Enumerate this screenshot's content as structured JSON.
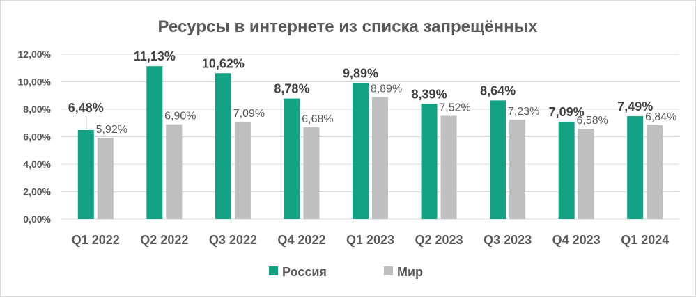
{
  "chart_data": {
    "type": "bar",
    "title": "Ресурсы в интернете из списка запрещённых",
    "xlabel": "",
    "ylabel": "",
    "categories": [
      "Q1 2022",
      "Q2 2022",
      "Q3 2022",
      "Q4 2022",
      "Q1 2023",
      "Q2 2023",
      "Q3 2023",
      "Q4 2023",
      "Q1 2024"
    ],
    "ylim": [
      0,
      12
    ],
    "yticks": [
      "0,00%",
      "2,00%",
      "4,00%",
      "6,00%",
      "8,00%",
      "10,00%",
      "12,00%"
    ],
    "grid": true,
    "legend_position": "bottom",
    "series": [
      {
        "name": "Россия",
        "color": "#13a283",
        "values": [
          6.48,
          11.13,
          10.62,
          8.78,
          9.89,
          8.39,
          8.64,
          7.09,
          7.49
        ],
        "labels": [
          "6,48%",
          "11,13%",
          "10,62%",
          "8,78%",
          "9,89%",
          "8,39%",
          "8,64%",
          "7,09%",
          "7,49%"
        ]
      },
      {
        "name": "Мир",
        "color": "#bfbfbf",
        "values": [
          5.92,
          6.9,
          7.09,
          6.68,
          8.89,
          7.52,
          7.23,
          6.58,
          6.84
        ],
        "labels": [
          "5,92%",
          "6,90%",
          "7,09%",
          "6,68%",
          "8,89%",
          "7,52%",
          "7,23%",
          "6,58%",
          "6,84%"
        ]
      }
    ]
  }
}
